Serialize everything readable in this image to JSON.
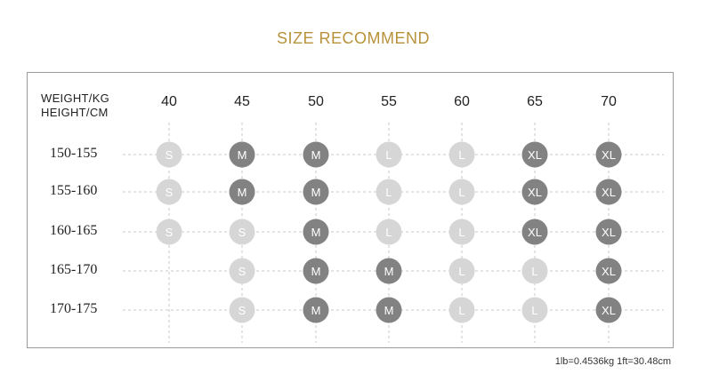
{
  "title": "SIZE RECOMMEND",
  "header": {
    "weight_label": "WEIGHT/KG",
    "height_label": "HEIGHT/CM"
  },
  "note": "1lb=0.4536kg  1ft=30.48cm",
  "colors": {
    "title": "#b8923a",
    "dark": "#828282",
    "light": "#d6d6d6",
    "grid": "#c8c8c8"
  },
  "chart_data": {
    "type": "table",
    "columns": [
      "40",
      "45",
      "50",
      "55",
      "60",
      "65",
      "70"
    ],
    "rows": [
      "150-155",
      "155-160",
      "160-165",
      "165-170",
      "170-175"
    ],
    "cells": [
      [
        "S",
        "M",
        "M",
        "L",
        "L",
        "XL",
        "XL"
      ],
      [
        "S",
        "M",
        "M",
        "L",
        "L",
        "XL",
        "XL"
      ],
      [
        "S",
        "S",
        "M",
        "L",
        "L",
        "XL",
        "XL"
      ],
      [
        "",
        "S",
        "M",
        "M",
        "L",
        "L",
        "XL"
      ],
      [
        "",
        "S",
        "M",
        "M",
        "L",
        "L",
        "XL"
      ]
    ],
    "shades": [
      [
        "light",
        "dark",
        "dark",
        "light",
        "light",
        "dark",
        "dark"
      ],
      [
        "light",
        "dark",
        "dark",
        "light",
        "light",
        "dark",
        "dark"
      ],
      [
        "light",
        "light",
        "dark",
        "light",
        "light",
        "dark",
        "dark"
      ],
      [
        "",
        "light",
        "dark",
        "dark",
        "light",
        "light",
        "dark"
      ],
      [
        "",
        "light",
        "dark",
        "dark",
        "light",
        "light",
        "dark"
      ]
    ]
  }
}
